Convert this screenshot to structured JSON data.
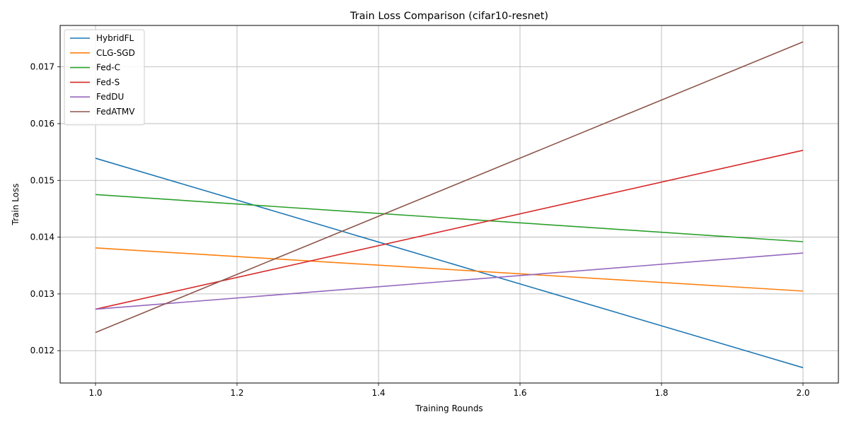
{
  "chart_data": {
    "type": "line",
    "title": "Train Loss Comparison (cifar10-resnet)",
    "xlabel": "Training Rounds",
    "ylabel": "Train Loss",
    "x": [
      1.0,
      2.0
    ],
    "xlim": [
      0.95,
      2.05
    ],
    "ylim": [
      0.01143,
      0.01773
    ],
    "xticks": [
      "1.0",
      "1.2",
      "1.4",
      "1.6",
      "1.8",
      "2.0"
    ],
    "yticks": [
      "0.012",
      "0.013",
      "0.014",
      "0.015",
      "0.016",
      "0.017"
    ],
    "grid": true,
    "legend_position": "top-left",
    "series": [
      {
        "name": "HybridFL",
        "color": "#1f77b4",
        "values": [
          0.01539,
          0.0117
        ]
      },
      {
        "name": "CLG-SGD",
        "color": "#ff7f0e",
        "values": [
          0.01381,
          0.01305
        ]
      },
      {
        "name": "Fed-C",
        "color": "#2ca02c",
        "values": [
          0.01475,
          0.01392
        ]
      },
      {
        "name": "Fed-S",
        "color": "#d62728",
        "values": [
          0.01273,
          0.01553
        ]
      },
      {
        "name": "FedDU",
        "color": "#9467bd",
        "values": [
          0.01273,
          0.01372
        ]
      },
      {
        "name": "FedATMV",
        "color": "#8c564b",
        "values": [
          0.01232,
          0.01744
        ]
      }
    ]
  }
}
